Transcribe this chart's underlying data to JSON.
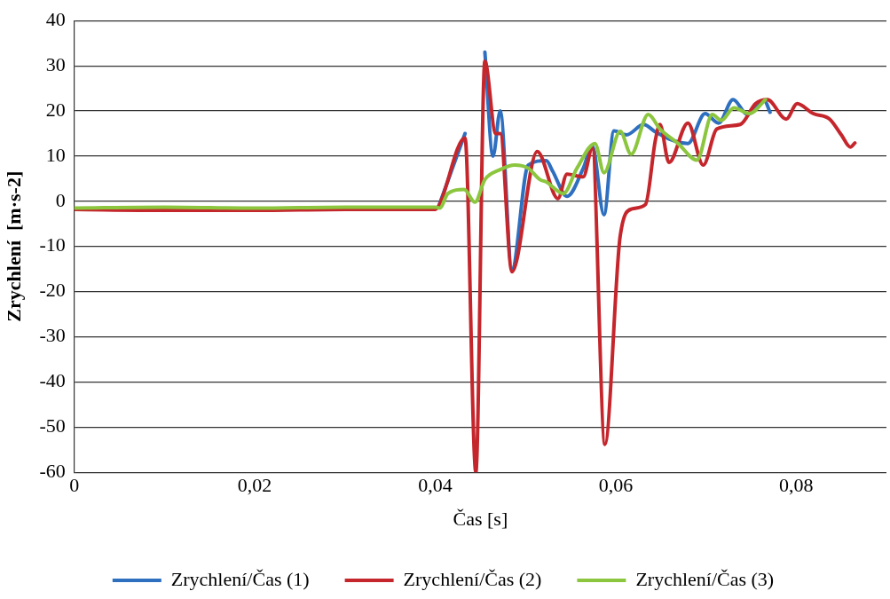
{
  "chart_data": {
    "type": "line",
    "xlabel": "Čas [s]",
    "ylabel": "Zrychlení  [m·s-2]",
    "xlim": [
      0,
      0.09
    ],
    "xticks": [
      {
        "value": 0,
        "label": "0"
      },
      {
        "value": 0.02,
        "label": "0,02"
      },
      {
        "value": 0.04,
        "label": "0,04"
      },
      {
        "value": 0.06,
        "label": "0,06"
      },
      {
        "value": 0.08,
        "label": "0,08"
      }
    ],
    "ylim": [
      -60,
      40
    ],
    "yticks": [
      -60,
      -50,
      -40,
      -30,
      -20,
      -10,
      0,
      10,
      20,
      30,
      40
    ],
    "grid": "y",
    "legend": "bottom",
    "marker": "none",
    "line_style": "solid",
    "series": [
      {
        "name": "Zrychlení/Čas (1)",
        "color": "#2e6fbf",
        "x": [
          0.0404,
          0.0433,
          0.0445,
          0.0455,
          0.0464,
          0.0472,
          0.0485,
          0.0503,
          0.0523,
          0.053,
          0.0546,
          0.0564,
          0.0574,
          0.0587,
          0.0598,
          0.0612,
          0.0631,
          0.0643,
          0.0659,
          0.068,
          0.0699,
          0.0714,
          0.073,
          0.0746,
          0.0765,
          0.0771
        ],
        "values": [
          -1,
          15,
          null,
          33,
          10,
          20,
          -15,
          8,
          9,
          6.7,
          1.1,
          7.3,
          12.3,
          -3,
          15.6,
          14.7,
          17,
          15.5,
          13.8,
          12.8,
          19.4,
          17.3,
          22.5,
          19.2,
          22.2,
          19.7
        ]
      },
      {
        "name": "Zrychlení/Čas (2)",
        "color": "#c4262c",
        "x": [
          0,
          0.01,
          0.02,
          0.03,
          0.04,
          0.0404,
          0.0433,
          0.0445,
          0.0455,
          0.0467,
          0.0472,
          0.0485,
          0.0513,
          0.0536,
          0.0546,
          0.0564,
          0.0574,
          0.0588,
          0.0605,
          0.0618,
          0.0633,
          0.0644,
          0.0649,
          0.0659,
          0.068,
          0.0697,
          0.0712,
          0.0738,
          0.0755,
          0.0768,
          0.0789,
          0.0801,
          0.0819,
          0.0837,
          0.085,
          0.086,
          0.0865
        ],
        "values": [
          -1.8,
          -2,
          -2,
          -1.8,
          -1.8,
          -1,
          14,
          -60,
          31,
          15,
          15,
          -15.6,
          11,
          0.6,
          6,
          5.4,
          11.7,
          -53.8,
          -7.6,
          -1.7,
          -0.7,
          13.6,
          17,
          8.6,
          17.3,
          8,
          16,
          17,
          21.6,
          22.5,
          18.2,
          21.6,
          19.4,
          18.2,
          14.7,
          12,
          12.9
        ]
      },
      {
        "name": "Zrychlení/Čas (3)",
        "color": "#8cc63f",
        "x": [
          0,
          0.01,
          0.02,
          0.03,
          0.04,
          0.0405,
          0.0414,
          0.0432,
          0.0444,
          0.0455,
          0.0472,
          0.0488,
          0.0503,
          0.0516,
          0.0523,
          0.0542,
          0.0557,
          0.0577,
          0.0587,
          0.0605,
          0.0617,
          0.0636,
          0.0649,
          0.0669,
          0.069,
          0.0707,
          0.0717,
          0.0731,
          0.0748,
          0.0766
        ],
        "values": [
          -1.5,
          -1.3,
          -1.5,
          -1.3,
          -1.3,
          -1.5,
          1.7,
          2.6,
          -0.2,
          4.8,
          7,
          8,
          7.3,
          4.8,
          4.3,
          1.7,
          7.3,
          12.8,
          6.3,
          15.5,
          10.4,
          19.2,
          16,
          12.8,
          9.1,
          19.2,
          17.9,
          20.7,
          19.4,
          22.5
        ]
      }
    ]
  }
}
